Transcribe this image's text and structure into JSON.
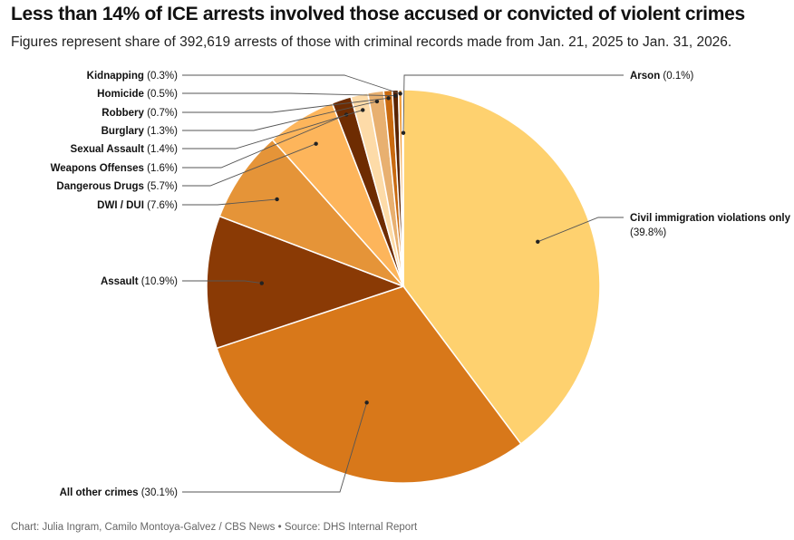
{
  "title": "Less than 14% of ICE arrests involved those accused or convicted of violent crimes",
  "subtitle": "Figures represent share of 392,619 arrests of those with criminal records made from Jan. 21, 2025 to Jan. 31, 2026.",
  "credit": "Chart: Julia Ingram, Camilo Montoya-Galvez / CBS News • Source: DHS Internal Report",
  "chart_data": {
    "type": "pie",
    "title": "Less than 14% of ICE arrests involved those accused or convicted of violent crimes",
    "slices": [
      {
        "label": "Civil immigration violations only",
        "value": 39.8,
        "display": "(39.8%)",
        "color": "#FED16F"
      },
      {
        "label": "All other crimes",
        "value": 30.1,
        "display": "(30.1%)",
        "color": "#D8781A"
      },
      {
        "label": "Assault",
        "value": 10.9,
        "display": "(10.9%)",
        "color": "#8A3A05"
      },
      {
        "label": "DWI / DUI",
        "value": 7.6,
        "display": "(7.6%)",
        "color": "#E59438"
      },
      {
        "label": "Dangerous Drugs",
        "value": 5.7,
        "display": "(5.7%)",
        "color": "#FDB55B"
      },
      {
        "label": "Weapons Offenses",
        "value": 1.6,
        "display": "(1.6%)",
        "color": "#6E2C02"
      },
      {
        "label": "Sexual Assault",
        "value": 1.4,
        "display": "(1.4%)",
        "color": "#FDDBA8"
      },
      {
        "label": "Burglary",
        "value": 1.3,
        "display": "(1.3%)",
        "color": "#E8B070"
      },
      {
        "label": "Robbery",
        "value": 0.7,
        "display": "(0.7%)",
        "color": "#C96A10"
      },
      {
        "label": "Homicide",
        "value": 0.5,
        "display": "(0.5%)",
        "color": "#5A2300"
      },
      {
        "label": "Kidnapping",
        "value": 0.3,
        "display": "(0.3%)",
        "color": "#F0A040"
      },
      {
        "label": "Arson",
        "value": 0.1,
        "display": "(0.1%)",
        "color": "#3A1500"
      }
    ],
    "legend": "none",
    "labels": "outside with leader lines"
  }
}
